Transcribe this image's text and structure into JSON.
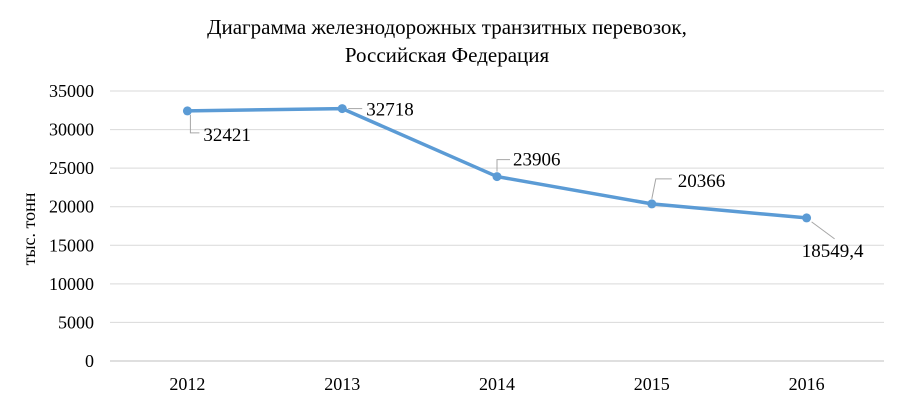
{
  "chart_data": {
    "type": "line",
    "title_line1": "Диаграмма железнодорожных транзитных перевозок,",
    "title_line2": "Российская Федерация",
    "xlabel": "",
    "ylabel": "тыс. тонн",
    "categories": [
      "2012",
      "2013",
      "2014",
      "2015",
      "2016"
    ],
    "series": [
      {
        "values": [
          32421,
          32718,
          23906,
          20366,
          18549.4
        ],
        "labels": [
          "32421",
          "32718",
          "23906",
          "20366",
          "18549,4"
        ],
        "color": "#5b9bd5"
      }
    ],
    "yticks": [
      0,
      5000,
      10000,
      15000,
      20000,
      25000,
      30000,
      35000
    ],
    "ylim": [
      0,
      35000
    ],
    "grid": true,
    "legend": "none"
  }
}
